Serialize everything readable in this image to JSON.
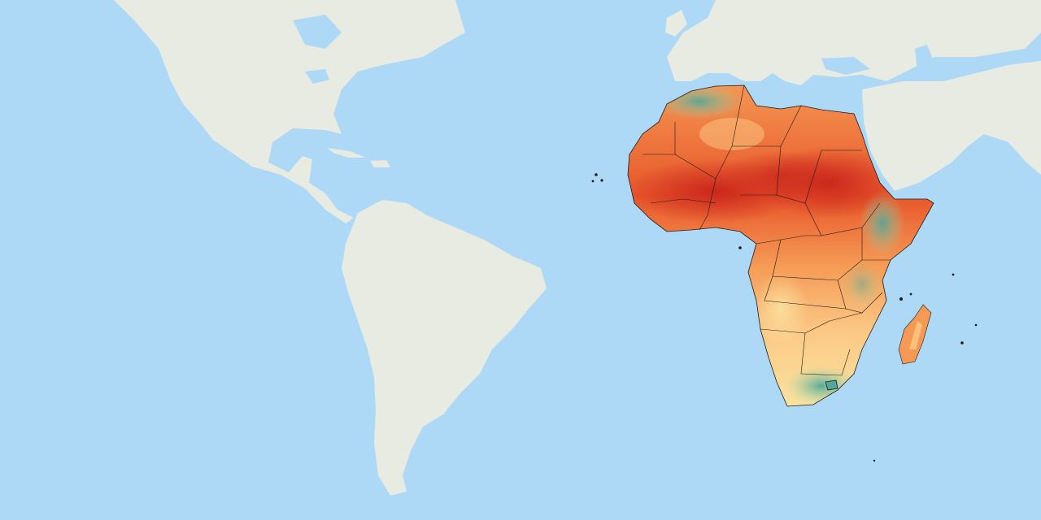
{
  "map": {
    "projection": "equirectangular",
    "region_highlighted": "Africa",
    "style": {
      "ocean_color": "#add9f7",
      "land_color": "#e7ebe1",
      "land_shade_color": "#d6ddd2",
      "border_color": "#1a1a1a"
    },
    "choropleth_palette": {
      "hot": "#c9241c",
      "warm": "#e8562a",
      "mid": "#f59a55",
      "light": "#fbc986",
      "pale": "#fbe7a4",
      "cool": "#a8d9a4",
      "cold": "#4fa89a"
    },
    "legend": null,
    "title": ""
  }
}
